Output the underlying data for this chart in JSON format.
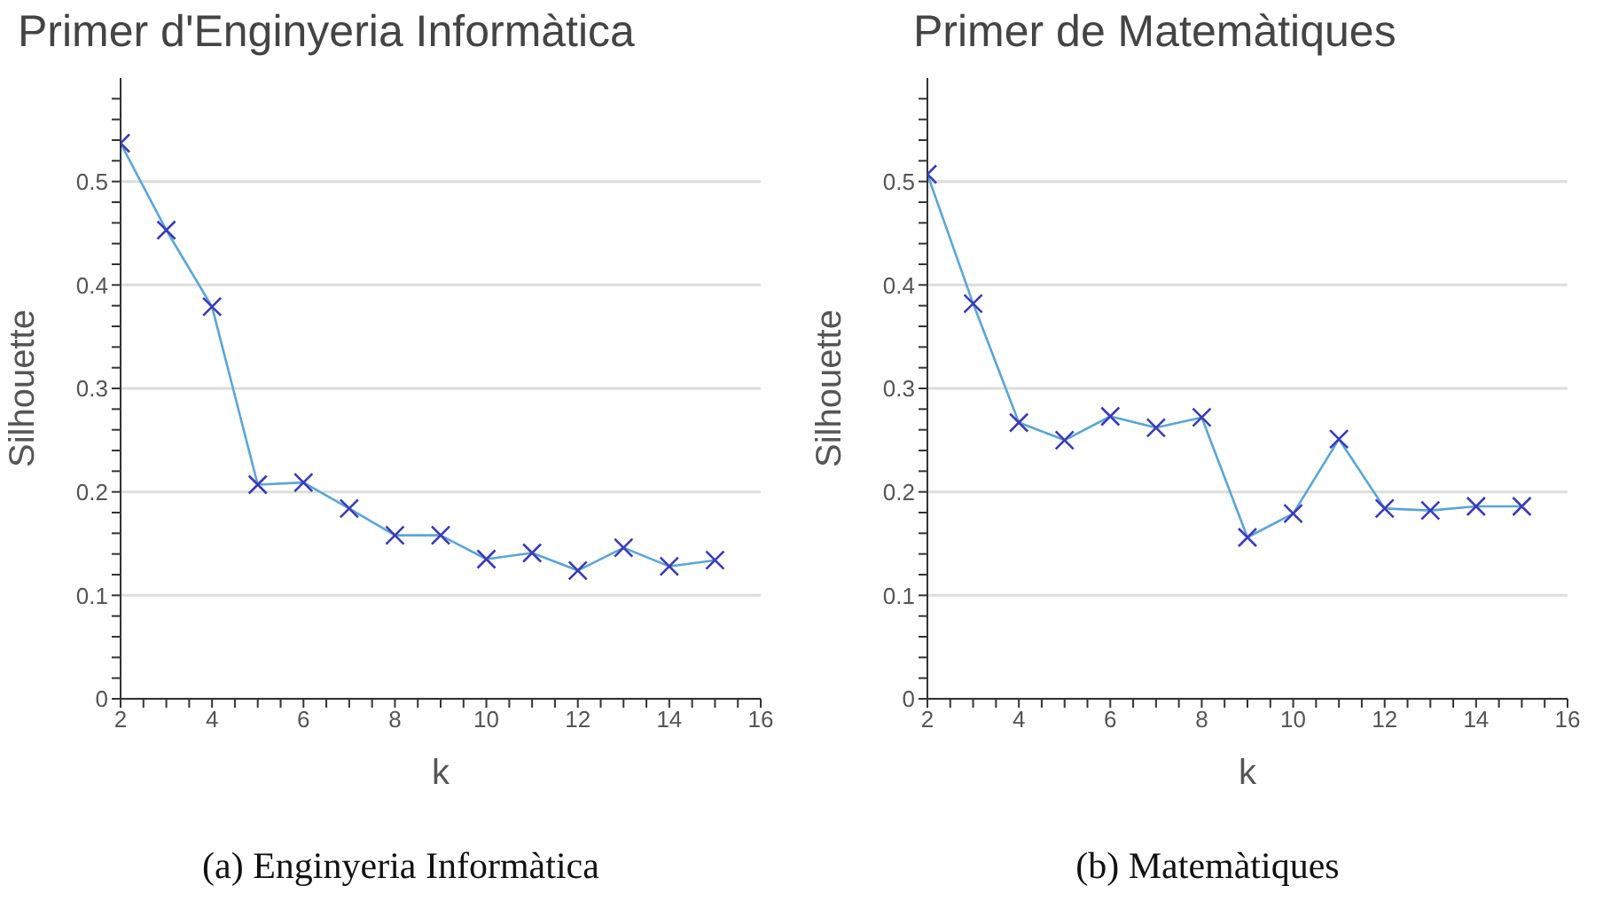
{
  "chart_data": [
    {
      "type": "line",
      "title": "Primer d'Enginyeria Informàtica",
      "xlabel": "k",
      "ylabel": "Silhouette",
      "annotations": [
        "(a) Enginyeria Informàtica"
      ],
      "x": [
        2,
        3,
        4,
        5,
        6,
        7,
        8,
        9,
        10,
        11,
        12,
        13,
        14,
        15
      ],
      "series": [
        {
          "color": "#5aa5d6",
          "values": [
            0.537,
            0.453,
            0.379,
            0.207,
            0.209,
            0.184,
            0.158,
            0.158,
            0.135,
            0.141,
            0.124,
            0.146,
            0.128,
            0.134
          ]
        }
      ],
      "xlim": [
        2,
        16
      ],
      "xticks": [
        2,
        {
          "value": 2.5,
          "label": null
        },
        {
          "value": 3,
          "label": null
        },
        {
          "value": 3.5,
          "label": null
        },
        4,
        {
          "value": 4.5,
          "label": null
        },
        {
          "value": 5,
          "label": null
        },
        {
          "value": 5.5,
          "label": null
        },
        6,
        {
          "value": 6.5,
          "label": null
        },
        {
          "value": 7,
          "label": null
        },
        {
          "value": 7.5,
          "label": null
        },
        8,
        {
          "value": 8.5,
          "label": null
        },
        {
          "value": 9,
          "label": null
        },
        {
          "value": 9.5,
          "label": null
        },
        10,
        {
          "value": 10.5,
          "label": null
        },
        {
          "value": 11,
          "label": null
        },
        {
          "value": 11.5,
          "label": null
        },
        12,
        {
          "value": 12.5,
          "label": null
        },
        {
          "value": 13,
          "label": null
        },
        {
          "value": 13.5,
          "label": null
        },
        14,
        {
          "value": 14.5,
          "label": null
        },
        {
          "value": 15,
          "label": null
        },
        {
          "value": 15.5,
          "label": null
        },
        16
      ],
      "ylim": [
        0,
        0.6
      ],
      "yticks": [
        0,
        {
          "value": 0.02,
          "label": null
        },
        {
          "value": 0.04,
          "label": null
        },
        {
          "value": 0.06,
          "label": null
        },
        {
          "value": 0.08,
          "label": null
        },
        0.1,
        {
          "value": 0.12,
          "label": null
        },
        {
          "value": 0.14,
          "label": null
        },
        {
          "value": 0.16,
          "label": null
        },
        {
          "value": 0.18,
          "label": null
        },
        0.2,
        {
          "value": 0.22,
          "label": null
        },
        {
          "value": 0.24,
          "label": null
        },
        {
          "value": 0.26,
          "label": null
        },
        {
          "value": 0.28,
          "label": null
        },
        0.3,
        {
          "value": 0.32,
          "label": null
        },
        {
          "value": 0.34,
          "label": null
        },
        {
          "value": 0.36,
          "label": null
        },
        {
          "value": 0.38,
          "label": null
        },
        0.4,
        {
          "value": 0.42,
          "label": null
        },
        {
          "value": 0.44,
          "label": null
        },
        {
          "value": 0.46,
          "label": null
        },
        {
          "value": 0.48,
          "label": null
        },
        0.5,
        {
          "value": 0.52,
          "label": null
        },
        {
          "value": 0.54,
          "label": null
        },
        {
          "value": 0.56,
          "label": null
        },
        {
          "value": 0.58,
          "label": null
        }
      ],
      "grid": "y",
      "marker": "cross",
      "line_style": "solid"
    },
    {
      "type": "line",
      "title": "Primer de Matemàtiques",
      "xlabel": "k",
      "ylabel": "Silhouette",
      "annotations": [
        "(b) Matemàtiques"
      ],
      "x": [
        2,
        3,
        4,
        5,
        6,
        7,
        8,
        9,
        10,
        11,
        12,
        13,
        14,
        15
      ],
      "series": [
        {
          "color": "#5aa5d6",
          "values": [
            0.507,
            0.382,
            0.267,
            0.25,
            0.273,
            0.262,
            0.272,
            0.156,
            0.179,
            0.251,
            0.184,
            0.182,
            0.186,
            0.186
          ]
        }
      ],
      "xlim": [
        2,
        16
      ],
      "xticks": [
        2,
        {
          "value": 2.5,
          "label": null
        },
        {
          "value": 3,
          "label": null
        },
        {
          "value": 3.5,
          "label": null
        },
        4,
        {
          "value": 4.5,
          "label": null
        },
        {
          "value": 5,
          "label": null
        },
        {
          "value": 5.5,
          "label": null
        },
        6,
        {
          "value": 6.5,
          "label": null
        },
        {
          "value": 7,
          "label": null
        },
        {
          "value": 7.5,
          "label": null
        },
        8,
        {
          "value": 8.5,
          "label": null
        },
        {
          "value": 9,
          "label": null
        },
        {
          "value": 9.5,
          "label": null
        },
        10,
        {
          "value": 10.5,
          "label": null
        },
        {
          "value": 11,
          "label": null
        },
        {
          "value": 11.5,
          "label": null
        },
        12,
        {
          "value": 12.5,
          "label": null
        },
        {
          "value": 13,
          "label": null
        },
        {
          "value": 13.5,
          "label": null
        },
        14,
        {
          "value": 14.5,
          "label": null
        },
        {
          "value": 15,
          "label": null
        },
        {
          "value": 15.5,
          "label": null
        },
        16
      ],
      "ylim": [
        0,
        0.6
      ],
      "yticks": [
        0,
        {
          "value": 0.02,
          "label": null
        },
        {
          "value": 0.04,
          "label": null
        },
        {
          "value": 0.06,
          "label": null
        },
        {
          "value": 0.08,
          "label": null
        },
        0.1,
        {
          "value": 0.12,
          "label": null
        },
        {
          "value": 0.14,
          "label": null
        },
        {
          "value": 0.16,
          "label": null
        },
        {
          "value": 0.18,
          "label": null
        },
        0.2,
        {
          "value": 0.22,
          "label": null
        },
        {
          "value": 0.24,
          "label": null
        },
        {
          "value": 0.26,
          "label": null
        },
        {
          "value": 0.28,
          "label": null
        },
        0.3,
        {
          "value": 0.32,
          "label": null
        },
        {
          "value": 0.34,
          "label": null
        },
        {
          "value": 0.36,
          "label": null
        },
        {
          "value": 0.38,
          "label": null
        },
        0.4,
        {
          "value": 0.42,
          "label": null
        },
        {
          "value": 0.44,
          "label": null
        },
        {
          "value": 0.46,
          "label": null
        },
        {
          "value": 0.48,
          "label": null
        },
        0.5,
        {
          "value": 0.52,
          "label": null
        },
        {
          "value": 0.54,
          "label": null
        },
        {
          "value": 0.56,
          "label": null
        },
        {
          "value": 0.58,
          "label": null
        }
      ],
      "grid": "y",
      "marker": "cross",
      "line_style": "solid"
    }
  ]
}
